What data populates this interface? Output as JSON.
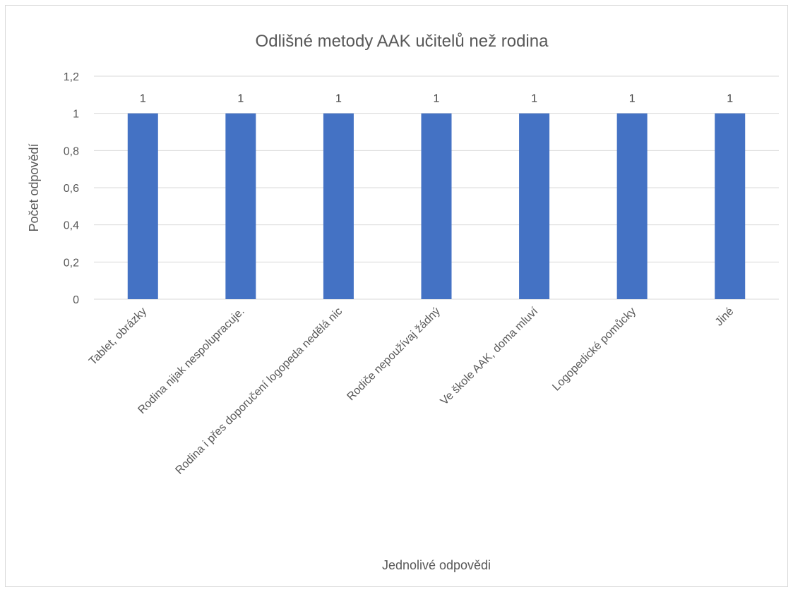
{
  "chart_data": {
    "type": "bar",
    "title": "Odlišné metody AAK učitelů než rodina",
    "xlabel": "Jednolivé odpovědi",
    "ylabel": "Počet odpovědí",
    "categories": [
      "Tablet, obrázky",
      "Rodina nijak nespolupracuje.",
      "Rodina i přes doporučení logopeda nedělá nic",
      "Rodiče nepoužívaj žádný",
      "Ve škole AAK, doma mluví",
      "Logopedické pomůcky",
      "Jiné"
    ],
    "values": [
      1,
      1,
      1,
      1,
      1,
      1,
      1
    ],
    "data_labels": [
      "1",
      "1",
      "1",
      "1",
      "1",
      "1",
      "1"
    ],
    "ylim": [
      0,
      1.2
    ],
    "yticks": [
      0,
      0.2,
      0.4,
      0.6,
      0.8,
      1,
      1.2
    ],
    "ytick_labels": [
      "0",
      "0,2",
      "0,4",
      "0,6",
      "0,8",
      "1",
      "1,2"
    ],
    "grid": true,
    "legend": "none",
    "bar_color": "#4472c4"
  }
}
